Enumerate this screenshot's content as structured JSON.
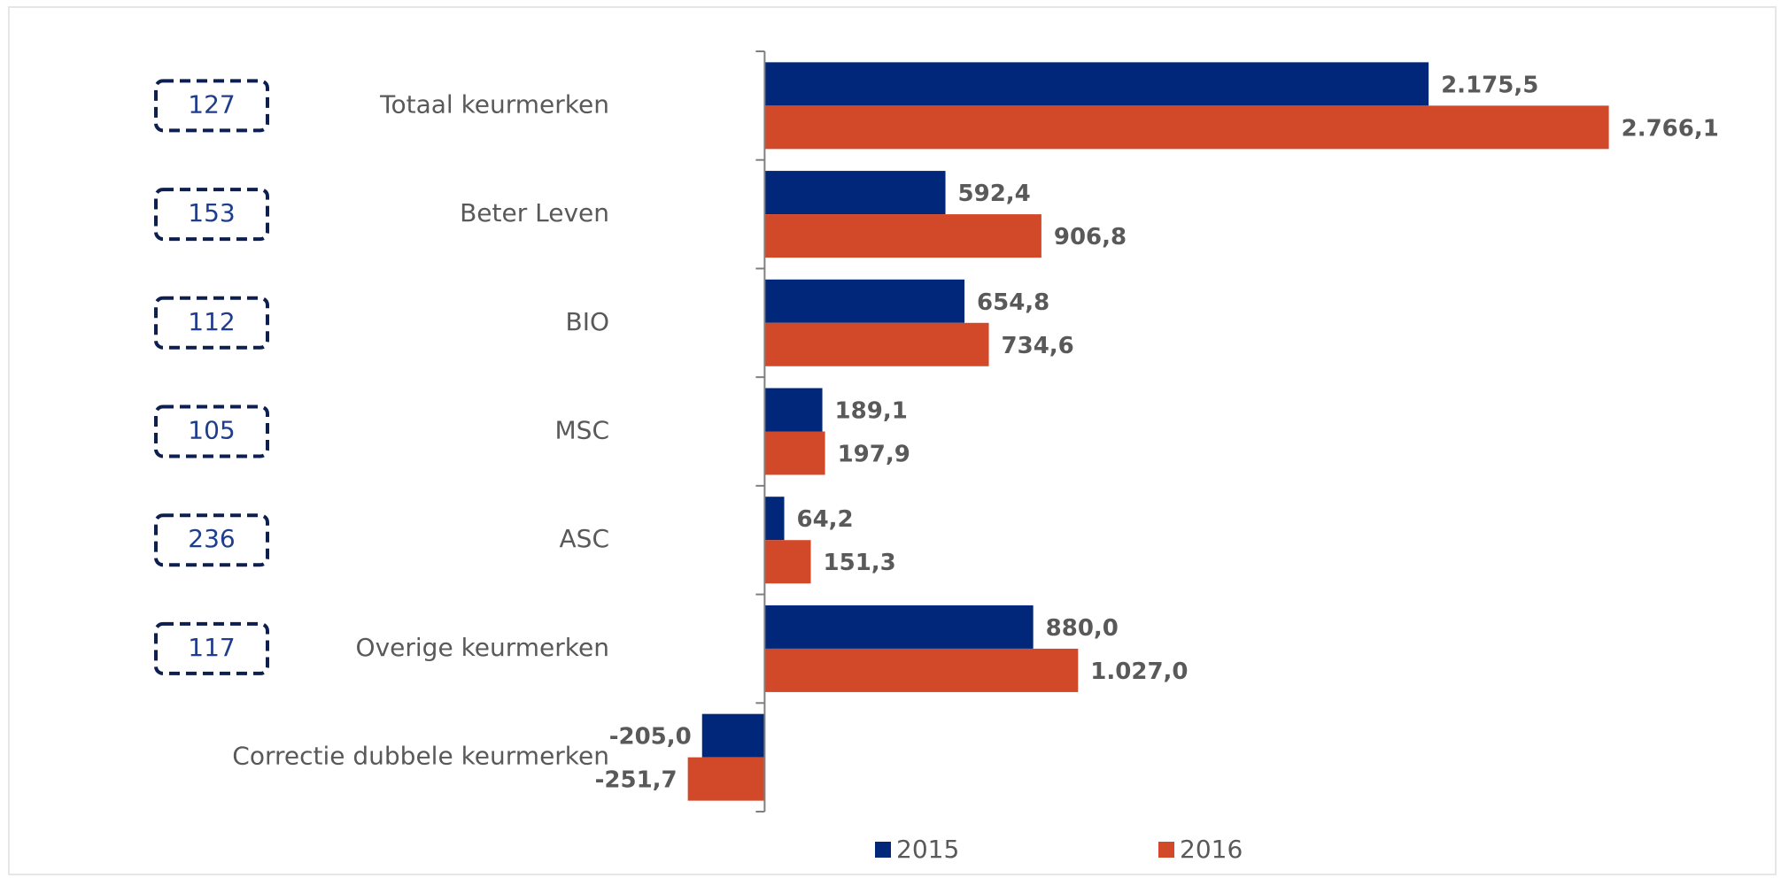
{
  "chart_data": {
    "type": "bar",
    "orientation": "horizontal",
    "categories": [
      "Totaal keurmerken",
      "Beter Leven",
      "BIO",
      "MSC",
      "ASC",
      "Overige keurmerken",
      "Correctie dubbele keurmerken"
    ],
    "badges": [
      127,
      153,
      112,
      105,
      236,
      117,
      null
    ],
    "series": [
      {
        "name": "2015",
        "color": "#00277a",
        "values": [
          2175.5,
          592.4,
          654.8,
          189.1,
          64.2,
          880.0,
          -205.0
        ],
        "value_labels": [
          "2.175,5",
          "592,4",
          "654,8",
          "189,1",
          "64,2",
          "880,0",
          "-205,0"
        ]
      },
      {
        "name": "2016",
        "color": "#d2492a",
        "values": [
          2766.1,
          906.8,
          734.6,
          197.9,
          151.3,
          1027.0,
          -251.7
        ],
        "value_labels": [
          "2.766,1",
          "906,8",
          "734,6",
          "197,9",
          "151,3",
          "1.027,0",
          "-251,7"
        ]
      }
    ],
    "xlim": [
      -300,
      2950
    ],
    "legend": "bottom"
  }
}
